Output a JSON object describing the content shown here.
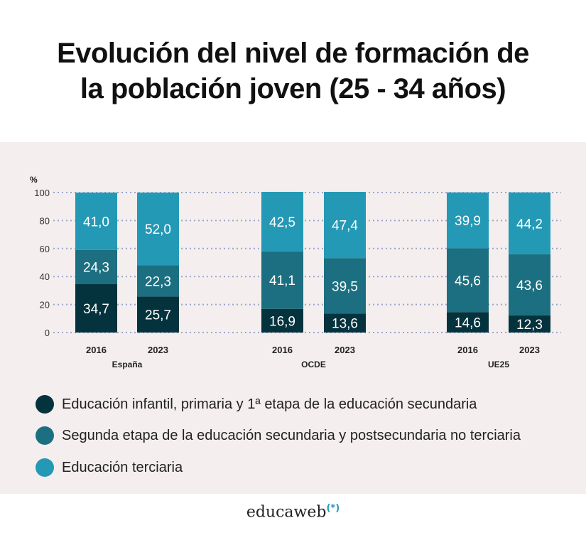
{
  "chart_data": {
    "type": "bar",
    "stacked": true,
    "title": "Evolución del nivel de formación de la población joven (25 - 34 años)",
    "ylabel": "%",
    "ylim": [
      0,
      100
    ],
    "yticks": [
      0,
      20,
      40,
      60,
      80,
      100
    ],
    "grid": true,
    "groups": [
      "España",
      "OCDE",
      "UE25"
    ],
    "categories": [
      "2016",
      "2023",
      "2016",
      "2023",
      "2016",
      "2023"
    ],
    "series": [
      {
        "name": "Educación infantil, primaria y 1ª etapa de la educación secundaria",
        "color": "#04323d",
        "values": [
          34.7,
          25.7,
          16.9,
          13.6,
          14.6,
          12.3
        ],
        "labels": [
          "34,7",
          "25,7",
          "16,9",
          "13,6",
          "14,6",
          "12,3"
        ]
      },
      {
        "name": "Segunda etapa de la educación secundaria y postsecundaria no terciaria",
        "color": "#1c6f80",
        "values": [
          24.3,
          22.3,
          41.1,
          39.5,
          45.6,
          43.6
        ],
        "labels": [
          "24,3",
          "22,3",
          "41,1",
          "39,5",
          "45,6",
          "43,6"
        ]
      },
      {
        "name": "Educación terciaria",
        "color": "#2399b5",
        "values": [
          41.0,
          52.0,
          42.5,
          47.4,
          39.9,
          44.2
        ],
        "labels": [
          "41,0",
          "52,0",
          "42,5",
          "47,4",
          "39,9",
          "44,2"
        ]
      }
    ],
    "legend_position": "bottom"
  },
  "title_lines": [
    "Evolución del nivel de formación de",
    "la población joven (25 - 34 años)"
  ],
  "brand": {
    "name": "educaweb",
    "mark": "(*)"
  }
}
